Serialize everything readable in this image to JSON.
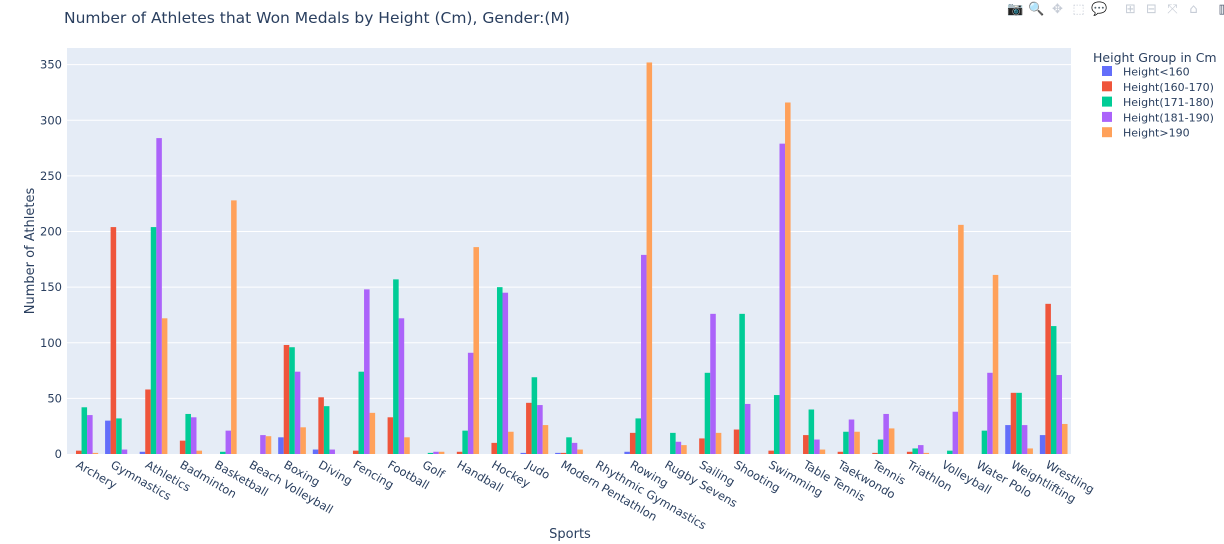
{
  "modebar": {
    "icons": [
      "camera-icon",
      "zoom-icon",
      "pan-icon",
      "box-select-icon",
      "lasso-icon",
      "zoom-in-icon",
      "zoom-out-icon",
      "autoscale-icon",
      "reset-axes-icon",
      "plotly-logo-icon"
    ],
    "glyphs": [
      "📷",
      "🔍",
      "✥",
      "⬚",
      "💬",
      "⊞",
      "⊟",
      "⤧",
      "⌂",
      "▥"
    ]
  },
  "chart_data": {
    "type": "bar",
    "title": "Number of Athletes that Won Medals by Height (Cm), Gender:(M)",
    "xlabel": "Sports",
    "ylabel": "Number of Athletes",
    "ylim": [
      0,
      365
    ],
    "yticks": [
      0,
      50,
      100,
      150,
      200,
      250,
      300,
      350
    ],
    "grid": true,
    "legend": {
      "title": "Height Group in Cm",
      "position": "right"
    },
    "categories": [
      "Archery",
      "Gymnastics",
      "Athletics",
      "Badminton",
      "Basketball",
      "Beach Volleyball",
      "Boxing",
      "Diving",
      "Fencing",
      "Football",
      "Golf",
      "Handball",
      "Hockey",
      "Judo",
      "Modern Pentathlon",
      "Rhythmic Gymnastics",
      "Rowing",
      "Rugby Sevens",
      "Sailing",
      "Shooting",
      "Swimming",
      "Table Tennis",
      "Taekwondo",
      "Tennis",
      "Triathlon",
      "Volleyball",
      "Water Polo",
      "Weightlifting",
      "Wrestling"
    ],
    "series": [
      {
        "name": "Height<160",
        "color": "#636efa",
        "values": [
          0,
          30,
          2,
          0,
          0,
          0,
          15,
          4,
          0,
          0,
          0,
          0,
          0,
          1,
          1,
          0,
          2,
          0,
          0,
          0,
          0,
          0,
          0,
          0,
          0,
          0,
          0,
          26,
          17
        ]
      },
      {
        "name": "Height(160-170)",
        "color": "#ef553b",
        "values": [
          3,
          204,
          58,
          12,
          0,
          0,
          98,
          51,
          3,
          33,
          0,
          2,
          10,
          46,
          1,
          0,
          19,
          0,
          14,
          22,
          3,
          17,
          2,
          1,
          2,
          0,
          0,
          55,
          135
        ]
      },
      {
        "name": "Height(171-180)",
        "color": "#00cc96",
        "values": [
          42,
          32,
          204,
          36,
          2,
          0,
          96,
          43,
          74,
          157,
          1,
          21,
          150,
          69,
          15,
          0,
          32,
          19,
          73,
          126,
          53,
          40,
          20,
          13,
          5,
          3,
          21,
          55,
          115
        ]
      },
      {
        "name": "Height(181-190)",
        "color": "#ab63fa",
        "values": [
          35,
          4,
          284,
          33,
          21,
          17,
          74,
          4,
          148,
          122,
          2,
          91,
          145,
          44,
          10,
          0,
          179,
          11,
          126,
          45,
          279,
          13,
          31,
          36,
          8,
          38,
          73,
          26,
          71
        ]
      },
      {
        "name": "Height>190",
        "color": "#ffa15a",
        "values": [
          1,
          0,
          122,
          3,
          228,
          16,
          24,
          0,
          37,
          15,
          2,
          186,
          20,
          26,
          4,
          0,
          352,
          8,
          19,
          0,
          316,
          4,
          20,
          23,
          1,
          206,
          161,
          5,
          27
        ]
      }
    ]
  }
}
